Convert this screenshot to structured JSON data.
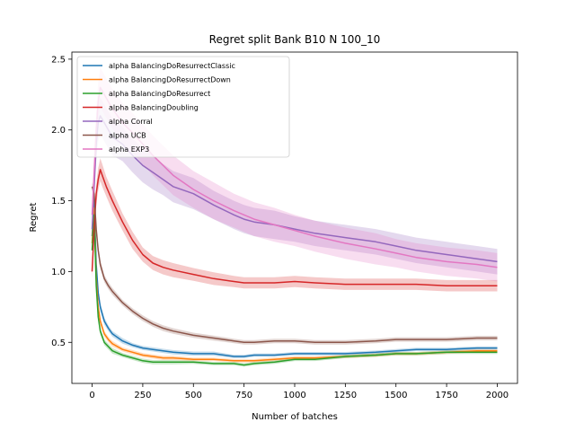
{
  "chart_data": {
    "type": "line",
    "title": "Regret split Bank B10 N 100_10",
    "xlabel": "Number of batches",
    "ylabel": "Regret",
    "xlim": [
      -100,
      2100
    ],
    "ylim": [
      0.21,
      2.55
    ],
    "xticks": [
      0,
      250,
      500,
      750,
      1000,
      1250,
      1500,
      1750,
      2000
    ],
    "yticks": [
      0.5,
      1.0,
      1.5,
      2.0,
      2.5
    ],
    "xtick_labels": [
      "0",
      "250",
      "500",
      "750",
      "1000",
      "1250",
      "1500",
      "1750",
      "2000"
    ],
    "ytick_labels": [
      "0.5",
      "1.0",
      "1.5",
      "2.0",
      "2.5"
    ],
    "grid": false,
    "legend_position": "top-left",
    "series": [
      {
        "name": "alpha BalancingDoResurrectClassic",
        "color": "#1f77b4",
        "x": [
          0,
          10,
          20,
          30,
          40,
          60,
          80,
          100,
          150,
          200,
          250,
          300,
          350,
          400,
          500,
          600,
          700,
          750,
          800,
          900,
          1000,
          1100,
          1250,
          1400,
          1500,
          1600,
          1750,
          1900,
          2000
        ],
        "y": [
          1.25,
          1.5,
          1.05,
          0.85,
          0.75,
          0.65,
          0.6,
          0.56,
          0.51,
          0.48,
          0.46,
          0.45,
          0.44,
          0.43,
          0.42,
          0.42,
          0.4,
          0.4,
          0.41,
          0.41,
          0.42,
          0.42,
          0.42,
          0.43,
          0.44,
          0.45,
          0.45,
          0.46,
          0.46
        ],
        "band": [
          0.02,
          0.02,
          0.03,
          0.03,
          0.03,
          0.025,
          0.02,
          0.02,
          0.02,
          0.015,
          0.015,
          0.015,
          0.015,
          0.015,
          0.015,
          0.015,
          0.012,
          0.012,
          0.012,
          0.012,
          0.012,
          0.012,
          0.012,
          0.012,
          0.012,
          0.012,
          0.012,
          0.012,
          0.012
        ]
      },
      {
        "name": "alpha BalancingDoResurrectDown",
        "color": "#ff7f0e",
        "x": [
          0,
          10,
          20,
          30,
          40,
          60,
          80,
          100,
          150,
          200,
          250,
          300,
          350,
          400,
          500,
          600,
          700,
          750,
          800,
          900,
          1000,
          1100,
          1250,
          1400,
          1500,
          1600,
          1750,
          1900,
          2000
        ],
        "y": [
          1.2,
          1.45,
          0.95,
          0.75,
          0.65,
          0.56,
          0.52,
          0.49,
          0.45,
          0.43,
          0.41,
          0.4,
          0.39,
          0.39,
          0.38,
          0.38,
          0.37,
          0.37,
          0.37,
          0.38,
          0.39,
          0.39,
          0.4,
          0.41,
          0.42,
          0.42,
          0.43,
          0.44,
          0.44
        ],
        "band": [
          0.03,
          0.03,
          0.03,
          0.03,
          0.025,
          0.02,
          0.02,
          0.02,
          0.015,
          0.015,
          0.015,
          0.015,
          0.015,
          0.015,
          0.012,
          0.012,
          0.012,
          0.012,
          0.012,
          0.012,
          0.012,
          0.012,
          0.012,
          0.012,
          0.012,
          0.012,
          0.012,
          0.012,
          0.012
        ]
      },
      {
        "name": "alpha BalancingDoResurrect",
        "color": "#2ca02c",
        "x": [
          0,
          10,
          20,
          30,
          40,
          60,
          80,
          100,
          150,
          200,
          250,
          300,
          350,
          400,
          500,
          600,
          700,
          750,
          800,
          900,
          1000,
          1100,
          1250,
          1400,
          1500,
          1600,
          1750,
          1900,
          2000
        ],
        "y": [
          1.15,
          1.4,
          0.9,
          0.68,
          0.58,
          0.5,
          0.47,
          0.44,
          0.41,
          0.39,
          0.37,
          0.36,
          0.36,
          0.36,
          0.36,
          0.35,
          0.35,
          0.34,
          0.35,
          0.36,
          0.38,
          0.38,
          0.4,
          0.41,
          0.42,
          0.42,
          0.43,
          0.43,
          0.43
        ],
        "band": [
          0.03,
          0.03,
          0.03,
          0.03,
          0.025,
          0.02,
          0.02,
          0.02,
          0.015,
          0.015,
          0.015,
          0.015,
          0.015,
          0.015,
          0.012,
          0.012,
          0.012,
          0.012,
          0.012,
          0.012,
          0.012,
          0.012,
          0.012,
          0.012,
          0.012,
          0.012,
          0.012,
          0.012,
          0.012
        ]
      },
      {
        "name": "alpha BalancingDoubling",
        "color": "#d62728",
        "x": [
          0,
          10,
          20,
          30,
          40,
          50,
          70,
          100,
          150,
          200,
          250,
          300,
          350,
          400,
          500,
          600,
          700,
          750,
          800,
          900,
          1000,
          1100,
          1250,
          1400,
          1500,
          1600,
          1750,
          1900,
          2000
        ],
        "y": [
          1.0,
          1.3,
          1.55,
          1.65,
          1.72,
          1.68,
          1.6,
          1.5,
          1.35,
          1.22,
          1.12,
          1.06,
          1.03,
          1.01,
          0.98,
          0.95,
          0.93,
          0.92,
          0.92,
          0.92,
          0.93,
          0.92,
          0.91,
          0.91,
          0.91,
          0.91,
          0.9,
          0.9,
          0.9
        ],
        "band": [
          0.05,
          0.06,
          0.07,
          0.08,
          0.08,
          0.08,
          0.07,
          0.07,
          0.06,
          0.06,
          0.05,
          0.05,
          0.05,
          0.05,
          0.045,
          0.045,
          0.04,
          0.04,
          0.04,
          0.04,
          0.04,
          0.04,
          0.04,
          0.04,
          0.04,
          0.04,
          0.04,
          0.04,
          0.04
        ]
      },
      {
        "name": "alpha Corral",
        "color": "#9467bd",
        "x": [
          0,
          10,
          20,
          30,
          40,
          60,
          80,
          100,
          150,
          200,
          250,
          300,
          350,
          400,
          500,
          600,
          700,
          750,
          800,
          900,
          1000,
          1100,
          1250,
          1400,
          1500,
          1600,
          1750,
          1900,
          2000
        ],
        "y": [
          1.3,
          1.6,
          1.9,
          2.05,
          2.1,
          2.05,
          2.0,
          1.95,
          1.9,
          1.82,
          1.75,
          1.7,
          1.65,
          1.6,
          1.55,
          1.47,
          1.4,
          1.37,
          1.35,
          1.33,
          1.3,
          1.27,
          1.24,
          1.21,
          1.18,
          1.15,
          1.12,
          1.09,
          1.07
        ],
        "band": [
          0.08,
          0.1,
          0.12,
          0.13,
          0.13,
          0.13,
          0.13,
          0.13,
          0.12,
          0.12,
          0.12,
          0.12,
          0.11,
          0.11,
          0.11,
          0.1,
          0.1,
          0.1,
          0.1,
          0.1,
          0.09,
          0.09,
          0.09,
          0.09,
          0.09,
          0.09,
          0.09,
          0.09,
          0.09
        ]
      },
      {
        "name": "alpha UCB",
        "color": "#8c564b",
        "x": [
          0,
          10,
          20,
          30,
          40,
          60,
          80,
          100,
          150,
          200,
          250,
          300,
          350,
          400,
          500,
          600,
          700,
          750,
          800,
          900,
          1000,
          1100,
          1250,
          1400,
          1500,
          1600,
          1750,
          1900,
          2000
        ],
        "y": [
          1.6,
          1.55,
          1.3,
          1.15,
          1.05,
          0.95,
          0.9,
          0.86,
          0.78,
          0.72,
          0.67,
          0.63,
          0.6,
          0.58,
          0.55,
          0.53,
          0.51,
          0.5,
          0.5,
          0.51,
          0.51,
          0.5,
          0.5,
          0.51,
          0.52,
          0.52,
          0.52,
          0.53,
          0.53
        ],
        "band": [
          0.03,
          0.03,
          0.03,
          0.03,
          0.03,
          0.025,
          0.025,
          0.025,
          0.02,
          0.02,
          0.02,
          0.02,
          0.02,
          0.02,
          0.018,
          0.018,
          0.016,
          0.016,
          0.016,
          0.016,
          0.016,
          0.016,
          0.016,
          0.016,
          0.016,
          0.016,
          0.016,
          0.016,
          0.016
        ]
      },
      {
        "name": "alpha EXP3",
        "color": "#e377c2",
        "x": [
          0,
          10,
          20,
          30,
          40,
          60,
          80,
          100,
          150,
          200,
          250,
          300,
          350,
          400,
          500,
          600,
          700,
          750,
          800,
          900,
          1000,
          1100,
          1250,
          1400,
          1500,
          1600,
          1750,
          1900,
          2000
        ],
        "y": [
          1.4,
          1.7,
          2.0,
          2.2,
          2.3,
          2.25,
          2.2,
          2.15,
          2.05,
          1.98,
          1.9,
          1.82,
          1.75,
          1.68,
          1.58,
          1.5,
          1.43,
          1.4,
          1.37,
          1.33,
          1.29,
          1.25,
          1.2,
          1.16,
          1.13,
          1.1,
          1.07,
          1.05,
          1.03
        ],
        "band": [
          0.1,
          0.12,
          0.14,
          0.14,
          0.14,
          0.14,
          0.14,
          0.14,
          0.14,
          0.14,
          0.14,
          0.14,
          0.14,
          0.14,
          0.13,
          0.13,
          0.12,
          0.12,
          0.12,
          0.12,
          0.11,
          0.11,
          0.11,
          0.11,
          0.1,
          0.1,
          0.1,
          0.1,
          0.1
        ]
      }
    ]
  }
}
